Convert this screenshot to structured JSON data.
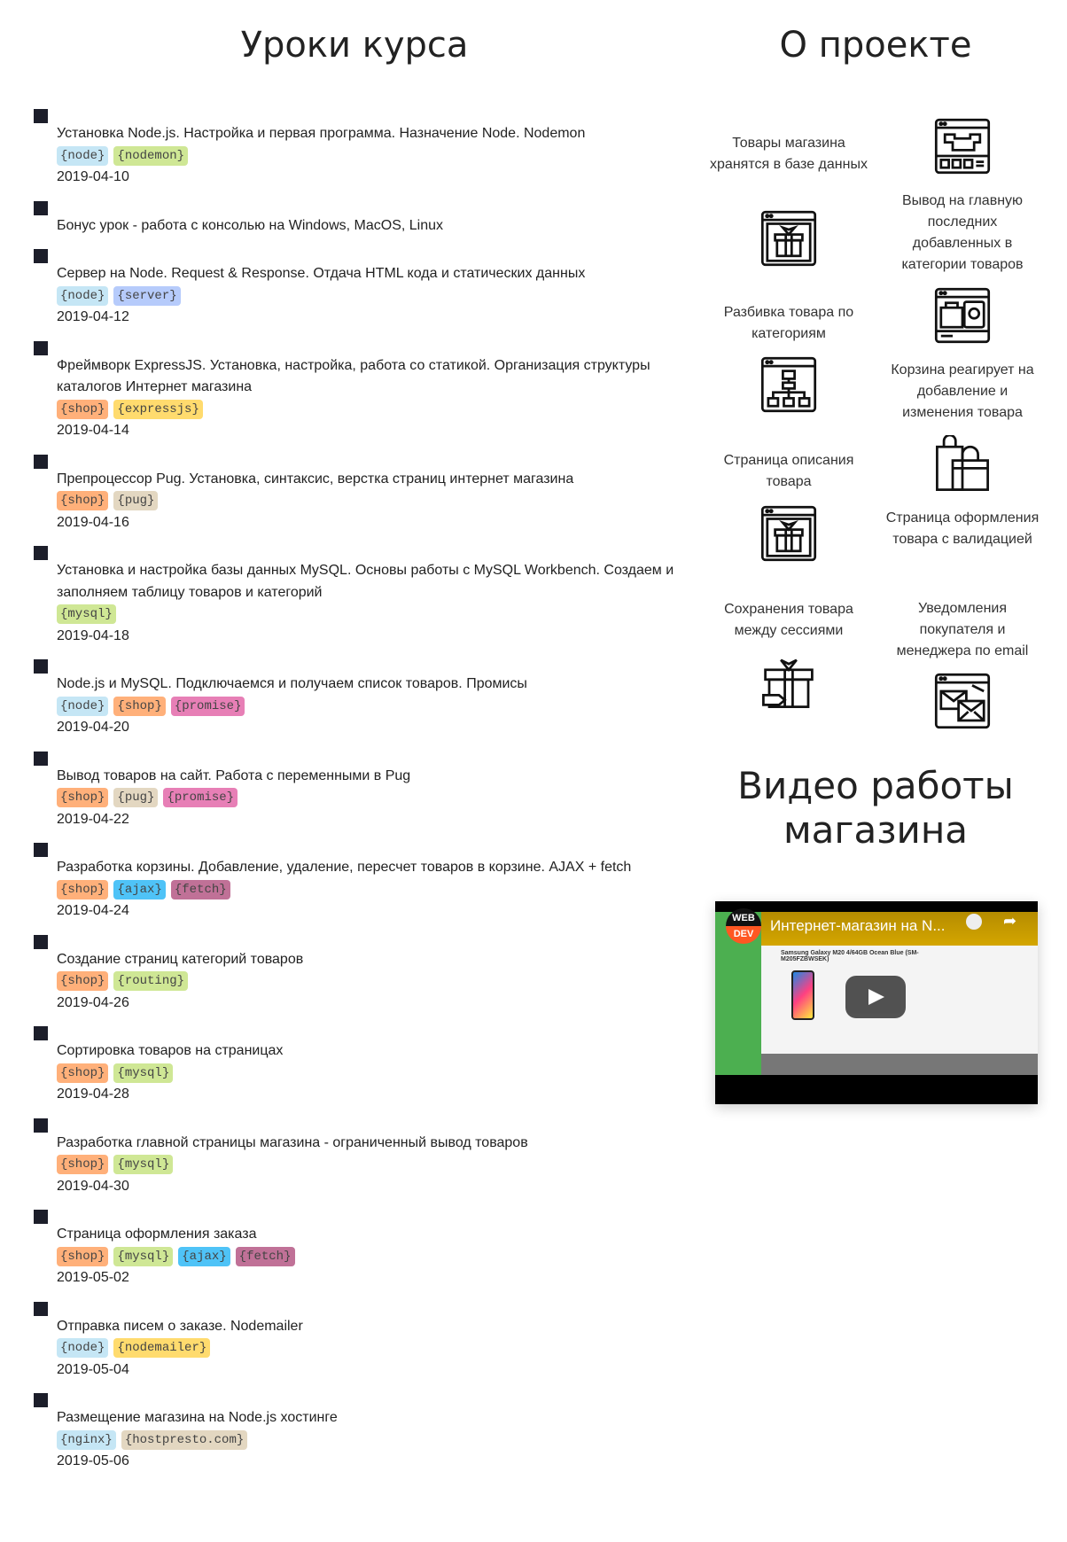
{
  "headings": {
    "lessons": "Уроки курса",
    "about": "О проекте",
    "video": "Видео работы магазина"
  },
  "tag_colors": {
    "node": "#c5e6f5",
    "nodemon": "#cfe795",
    "server": "#b6cbfb",
    "shop": "#ffb07a",
    "expressjs": "#ffdb6e",
    "pug": "#e3d7c1",
    "mysql": "#cfe795",
    "promise": "#e77fb6",
    "ajax": "#4fc3f7",
    "fetch": "#c07197",
    "routing": "#cfe795",
    "nodemailer": "#ffdb6e",
    "nginx": "#c5e6f5",
    "hostpresto.com": "#e3d7c1"
  },
  "lessons": [
    {
      "title": "Установка Node.js. Настройка и первая программа. Назначение Node. Nodemon",
      "tags": [
        "node",
        "nodemon"
      ],
      "date": "2019-04-10"
    },
    {
      "title": "Бонус урок - работа с консолью на Windows, MacOS, Linux",
      "tags": [],
      "date": ""
    },
    {
      "title": "Сервер на Node. Request & Response. Отдача HTML кода и статических данных",
      "tags": [
        "node",
        "server"
      ],
      "date": "2019-04-12"
    },
    {
      "title": "Фреймворк ExpressJS. Установка, настройка, работа со статикой. Организация структуры каталогов Интернет магазина",
      "tags": [
        "shop",
        "expressjs"
      ],
      "date": "2019-04-14"
    },
    {
      "title": "Препроцессор Pug. Установка, синтаксис, верстка страниц интернет магазина",
      "tags": [
        "shop",
        "pug"
      ],
      "date": "2019-04-16"
    },
    {
      "title": "Установка и настройка базы данных MySQL. Основы работы с MySQL Workbench. Создаем и заполняем таблицу товаров и категорий",
      "tags": [
        "mysql"
      ],
      "date": "2019-04-18"
    },
    {
      "title": "Node.js и MySQL. Подключаемся и получаем список товаров. Промисы",
      "tags": [
        "node",
        "shop",
        "promise"
      ],
      "date": "2019-04-20"
    },
    {
      "title": "Вывод товаров на сайт. Работа с переменными в Pug",
      "tags": [
        "shop",
        "pug",
        "promise"
      ],
      "date": "2019-04-22"
    },
    {
      "title": "Разработка корзины. Добавление, удаление, пересчет товаров в корзине. AJAX + fetch",
      "tags": [
        "shop",
        "ajax",
        "fetch"
      ],
      "date": "2019-04-24"
    },
    {
      "title": "Создание страниц категорий товаров",
      "tags": [
        "shop",
        "routing"
      ],
      "date": "2019-04-26"
    },
    {
      "title": "Сортировка товаров на страницах",
      "tags": [
        "shop",
        "mysql"
      ],
      "date": "2019-04-28"
    },
    {
      "title": "Разработка главной страницы магазина - ограниченный вывод товаров",
      "tags": [
        "shop",
        "mysql"
      ],
      "date": "2019-04-30"
    },
    {
      "title": "Страница оформления заказа",
      "tags": [
        "shop",
        "mysql",
        "ajax",
        "fetch"
      ],
      "date": "2019-05-02"
    },
    {
      "title": "Отправка писем о заказе. Nodemailer",
      "tags": [
        "node",
        "nodemailer"
      ],
      "date": "2019-05-04"
    },
    {
      "title": "Размещение магазина на Node.js хостинге",
      "tags": [
        "nginx",
        "hostpresto.com"
      ],
      "date": "2019-05-06"
    }
  ],
  "features": [
    {
      "text": "Товары магазина хранятся в базе данных",
      "icon": "gift-window-icon"
    },
    {
      "text": "Вывод на главную последних добавленных в категории товаров",
      "icon": "shop-window-icon"
    },
    {
      "text": "Разбивка товара по категориям",
      "icon": "category-tree-icon"
    },
    {
      "text": "Корзина реагирует на добавление и изменения товара",
      "icon": "cart-window-icon"
    },
    {
      "text": "Страница описания товара",
      "icon": "gift-window-icon"
    },
    {
      "text": "Страница оформления товара с валидацией",
      "icon": "shopping-bags-icon"
    },
    {
      "text": "Сохранения товара между сессиями",
      "icon": "gift-tag-icon"
    },
    {
      "text": "Уведомления покупателя и менеджера по email",
      "icon": "email-window-icon"
    }
  ],
  "video": {
    "title": "Интернет-магазин на N...",
    "channel_logo_top": "WEB",
    "channel_logo_bottom": "DEV",
    "product_title": "Samsung Galaxy M20 4/64GB Ocean Blue (SM-M205FZBWSEK)"
  }
}
